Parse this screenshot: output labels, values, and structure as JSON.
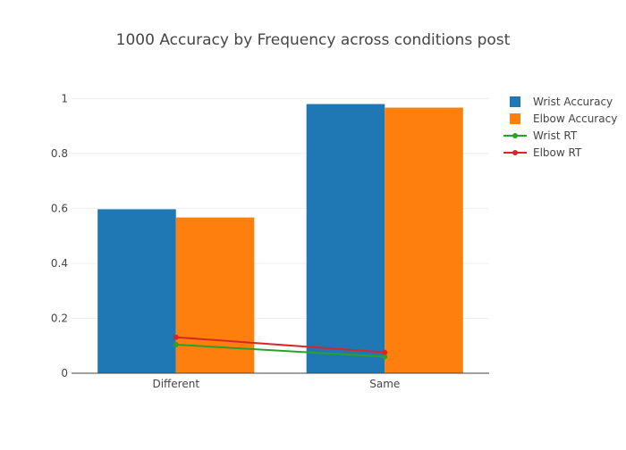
{
  "chart_data": {
    "type": "bar",
    "title": "1000 Accuracy by Frequency across conditions post",
    "categories": [
      "Different",
      "Same"
    ],
    "ylim": [
      0,
      1.05
    ],
    "yticks": [
      0,
      0.2,
      0.4,
      0.6,
      0.8,
      1
    ],
    "grid": true,
    "legend_position": "top-right",
    "series": [
      {
        "name": "Wrist Accuracy",
        "kind": "bar",
        "color": "#1f77b4",
        "values": [
          0.597,
          0.98
        ]
      },
      {
        "name": "Elbow Accuracy",
        "kind": "bar",
        "color": "#ff7f0e",
        "values": [
          0.567,
          0.967
        ]
      },
      {
        "name": "Wrist RT",
        "kind": "line",
        "color": "#2ca02c",
        "values": [
          0.104,
          0.06
        ]
      },
      {
        "name": "Elbow RT",
        "kind": "line",
        "color": "#d62728",
        "values": [
          0.131,
          0.076
        ]
      }
    ]
  }
}
